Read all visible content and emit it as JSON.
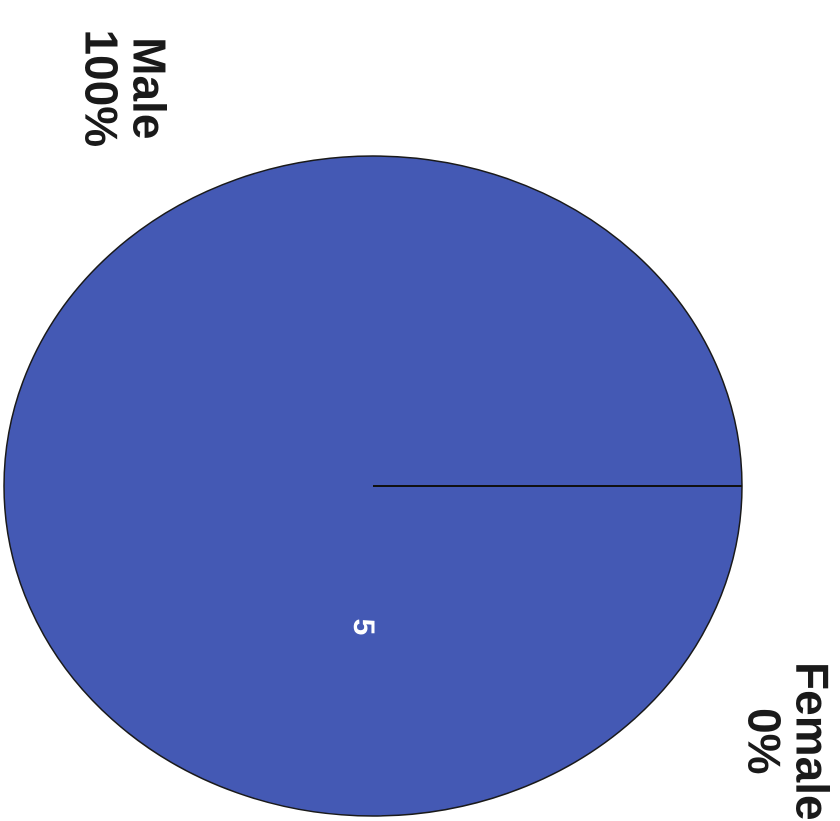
{
  "chart_data": {
    "type": "pie",
    "categories": [
      "Male",
      "Female"
    ],
    "values": [
      5,
      0
    ],
    "percent_labels": [
      "100%",
      "0%"
    ],
    "data_labels": [
      "5",
      ""
    ],
    "colors": {
      "Male": "#4459b4",
      "Female": "#8a3a4a",
      "outline": "#1a1a1a",
      "data_label": "#ffffff"
    },
    "title": "",
    "legend": "none",
    "orientation": "rotated 90° clockwise"
  }
}
